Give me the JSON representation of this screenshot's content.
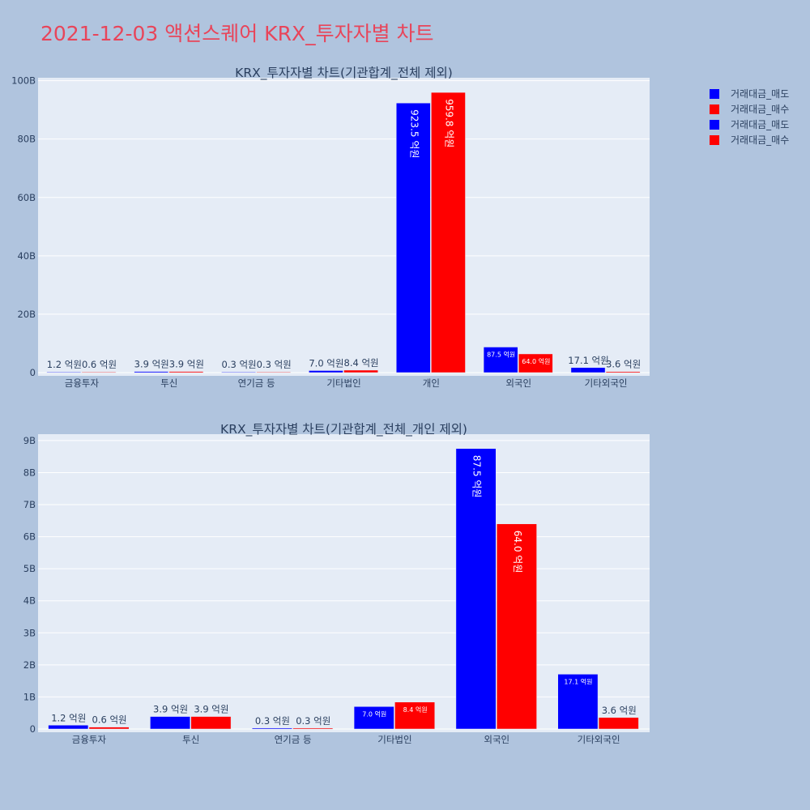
{
  "title": "2021-12-03 액션스퀘어 KRX_투자자별 차트",
  "legend": [
    {
      "label": "거래대금_매도",
      "color": "#0000ff"
    },
    {
      "label": "거래대금_매수",
      "color": "#ff0000"
    },
    {
      "label": "거래대금_매도",
      "color": "#0000ff"
    },
    {
      "label": "거래대금_매수",
      "color": "#ff0000"
    }
  ],
  "chart_data": [
    {
      "type": "bar",
      "title": "KRX_투자자별 차트(기관합계_전체 제외)",
      "categories": [
        "금융투자",
        "투신",
        "연기금 등",
        "기타법인",
        "개인",
        "외국인",
        "기타외국인"
      ],
      "series": [
        {
          "name": "거래대금_매도",
          "color": "#0000ff",
          "values": [
            120000000.0,
            390000000.0,
            30000000.0,
            700000000.0,
            92350000000.0,
            8750000000.0,
            1710000000.0
          ],
          "labels": [
            "1.2 억원",
            "3.9 억원",
            "0.3 억원",
            "7.0 억원",
            "923.5 억원",
            "87.5 억원",
            "17.1 억원"
          ]
        },
        {
          "name": "거래대금_매수",
          "color": "#ff0000",
          "values": [
            60000000.0,
            390000000.0,
            30000000.0,
            840000000.0,
            95980000000.0,
            6400000000.0,
            360000000.0
          ],
          "labels": [
            "0.6 억원",
            "3.9 억원",
            "0.3 억원",
            "8.4 억원",
            "959.8 억원",
            "64.0 억원",
            "3.6 억원"
          ]
        }
      ],
      "yticks": [
        0,
        20000000000.0,
        40000000000.0,
        60000000000.0,
        80000000000.0,
        100000000000.0
      ],
      "ytick_labels": [
        "0",
        "20B",
        "40B",
        "60B",
        "80B",
        "100B"
      ],
      "ylim": [
        0,
        101000000000.0
      ]
    },
    {
      "type": "bar",
      "title": "KRX_투자자별 차트(기관합계_전체_개인 제외)",
      "categories": [
        "금융투자",
        "투신",
        "연기금 등",
        "기타법인",
        "외국인",
        "기타외국인"
      ],
      "series": [
        {
          "name": "거래대금_매도",
          "color": "#0000ff",
          "values": [
            120000000.0,
            390000000.0,
            30000000.0,
            700000000.0,
            8750000000.0,
            1710000000.0
          ],
          "labels": [
            "1.2 억원",
            "3.9 억원",
            "0.3 억원",
            "7.0 억원",
            "87.5 억원",
            "17.1 억원"
          ]
        },
        {
          "name": "거래대금_매수",
          "color": "#ff0000",
          "values": [
            60000000.0,
            390000000.0,
            30000000.0,
            840000000.0,
            6400000000.0,
            360000000.0
          ],
          "labels": [
            "0.6 억원",
            "3.9 억원",
            "0.3 억원",
            "8.4 억원",
            "64.0 억원",
            "3.6 억원"
          ]
        }
      ],
      "yticks": [
        0,
        1000000000.0,
        2000000000.0,
        3000000000.0,
        4000000000.0,
        5000000000.0,
        6000000000.0,
        7000000000.0,
        8000000000.0,
        9000000000.0
      ],
      "ytick_labels": [
        "0",
        "1B",
        "2B",
        "3B",
        "4B",
        "5B",
        "6B",
        "7B",
        "8B",
        "9B"
      ],
      "ylim": [
        0,
        9200000000.0
      ]
    }
  ]
}
